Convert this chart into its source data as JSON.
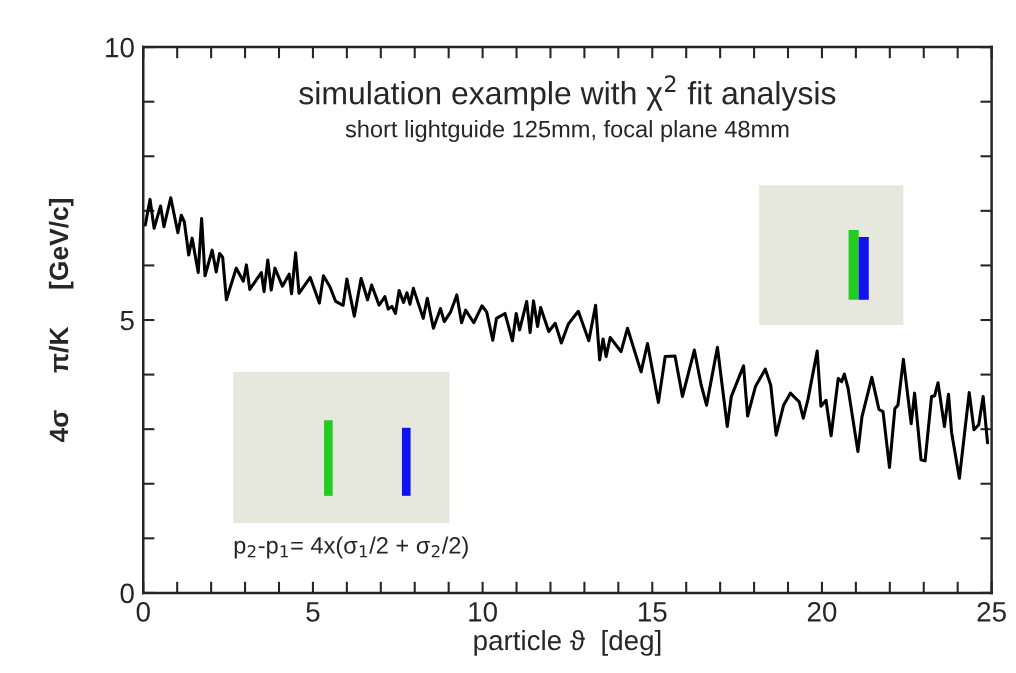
{
  "chart_data": {
    "type": "line",
    "title": "simulation example with χ$^{2}$ fit analysis",
    "subtitle": "short lightguide 125mm, focal plane 48mm",
    "xlabel": "particle ϑ  [deg]",
    "ylabel": "4σ     π/K     [GeV/c]",
    "annotations": [
      "p$_{2}$-p$_{1}$= 4x(σ$_{1}$/2 + σ$_{2}$/2)"
    ],
    "x": [
      0.06,
      0.2,
      0.32,
      0.51,
      0.61,
      0.81,
      1.02,
      1.12,
      1.21,
      1.34,
      1.44,
      1.62,
      1.72,
      1.82,
      2.03,
      2.15,
      2.25,
      2.34,
      2.45,
      2.74,
      2.95,
      3.04,
      3.14,
      3.48,
      3.56,
      3.67,
      3.77,
      3.88,
      4.1,
      4.3,
      4.37,
      4.49,
      4.59,
      4.92,
      5.19,
      5.31,
      5.5,
      5.67,
      5.89,
      6.0,
      6.22,
      6.42,
      6.61,
      6.73,
      6.95,
      7.12,
      7.22,
      7.33,
      7.43,
      7.54,
      7.67,
      7.77,
      7.86,
      7.96,
      8.25,
      8.37,
      8.55,
      8.76,
      8.87,
      9.06,
      9.24,
      9.38,
      9.5,
      9.74,
      9.98,
      10.12,
      10.3,
      10.41,
      10.66,
      10.88,
      10.99,
      11.09,
      11.3,
      11.4,
      11.5,
      11.62,
      11.71,
      11.95,
      12.14,
      12.32,
      12.53,
      12.82,
      13.13,
      13.33,
      13.45,
      13.55,
      13.64,
      13.76,
      14.08,
      14.27,
      14.67,
      14.86,
      15.18,
      15.38,
      15.67,
      15.89,
      16.24,
      16.44,
      16.6,
      16.92,
      17.21,
      17.33,
      17.69,
      17.81,
      18.04,
      18.33,
      18.49,
      18.65,
      18.87,
      19.07,
      19.33,
      19.45,
      19.59,
      19.86,
      19.97,
      20.12,
      20.27,
      20.48,
      20.58,
      20.66,
      20.77,
      21.06,
      21.18,
      21.47,
      21.68,
      21.8,
      21.99,
      22.15,
      22.24,
      22.4,
      22.63,
      22.73,
      22.92,
      23.04,
      23.23,
      23.32,
      23.42,
      23.61,
      23.73,
      23.82,
      24.05,
      24.34,
      24.48,
      24.62,
      24.75,
      24.88
    ],
    "series": [
      {
        "color": "#000000",
        "values": [
          6.74,
          7.21,
          6.68,
          7.09,
          6.71,
          7.24,
          6.6,
          6.92,
          6.8,
          6.19,
          6.5,
          5.87,
          6.86,
          5.81,
          6.28,
          5.88,
          6.22,
          6.15,
          5.37,
          5.95,
          5.71,
          6.01,
          5.56,
          5.87,
          5.52,
          6.1,
          5.55,
          5.95,
          5.62,
          5.84,
          5.48,
          6.23,
          5.49,
          5.78,
          5.31,
          5.81,
          5.61,
          5.34,
          5.27,
          5.75,
          5.07,
          5.76,
          5.37,
          5.64,
          5.27,
          5.43,
          5.2,
          5.25,
          5.12,
          5.54,
          5.32,
          5.5,
          5.29,
          5.58,
          5.03,
          5.4,
          4.85,
          5.21,
          4.97,
          5.15,
          5.46,
          4.95,
          5.18,
          4.95,
          5.26,
          5.15,
          4.63,
          5.03,
          5.12,
          4.62,
          5.12,
          4.82,
          5.34,
          4.77,
          5.35,
          4.88,
          5.23,
          4.79,
          4.94,
          4.58,
          4.93,
          5.16,
          4.62,
          5.27,
          4.27,
          4.65,
          4.33,
          4.68,
          4.42,
          4.85,
          4.05,
          4.57,
          3.49,
          4.33,
          4.34,
          3.6,
          4.45,
          3.81,
          3.44,
          4.5,
          3.05,
          3.6,
          4.16,
          3.24,
          3.78,
          4.1,
          3.81,
          2.89,
          3.44,
          3.66,
          3.5,
          3.2,
          3.55,
          4.43,
          3.42,
          3.53,
          2.88,
          3.93,
          3.87,
          4.01,
          3.75,
          2.59,
          3.23,
          3.95,
          3.36,
          3.32,
          2.3,
          3.38,
          3.44,
          4.28,
          3.1,
          3.66,
          2.44,
          2.42,
          3.6,
          3.61,
          3.85,
          3.05,
          3.64,
          2.94,
          2.1,
          3.67,
          2.99,
          3.08,
          3.6,
          2.75
        ]
      }
    ],
    "xlim": [
      0,
      25
    ],
    "ylim": [
      0,
      10
    ],
    "xticks": [
      0,
      {
        "value": 1,
        "label": null
      },
      {
        "value": 2,
        "label": null
      },
      {
        "value": 3,
        "label": null
      },
      {
        "value": 4,
        "label": null
      },
      5,
      {
        "value": 6,
        "label": null
      },
      {
        "value": 7,
        "label": null
      },
      {
        "value": 8,
        "label": null
      },
      {
        "value": 9,
        "label": null
      },
      10,
      {
        "value": 11,
        "label": null
      },
      {
        "value": 12,
        "label": null
      },
      {
        "value": 13,
        "label": null
      },
      {
        "value": 14,
        "label": null
      },
      15,
      {
        "value": 16,
        "label": null
      },
      {
        "value": 17,
        "label": null
      },
      {
        "value": 18,
        "label": null
      },
      {
        "value": 19,
        "label": null
      },
      20,
      {
        "value": 21,
        "label": null
      },
      {
        "value": 22,
        "label": null
      },
      {
        "value": 23,
        "label": null
      },
      {
        "value": 24,
        "label": null
      },
      25
    ],
    "yticks": [
      0,
      {
        "value": 1,
        "label": null
      },
      {
        "value": 2,
        "label": null
      },
      {
        "value": 3,
        "label": null
      },
      {
        "value": 4,
        "label": null
      },
      5,
      {
        "value": 6,
        "label": null
      },
      {
        "value": 7,
        "label": null
      },
      {
        "value": 8,
        "label": null
      },
      {
        "value": 9,
        "label": null
      },
      10
    ],
    "grid": false,
    "legend": false,
    "marker": "none",
    "line_style": "solid"
  }
}
